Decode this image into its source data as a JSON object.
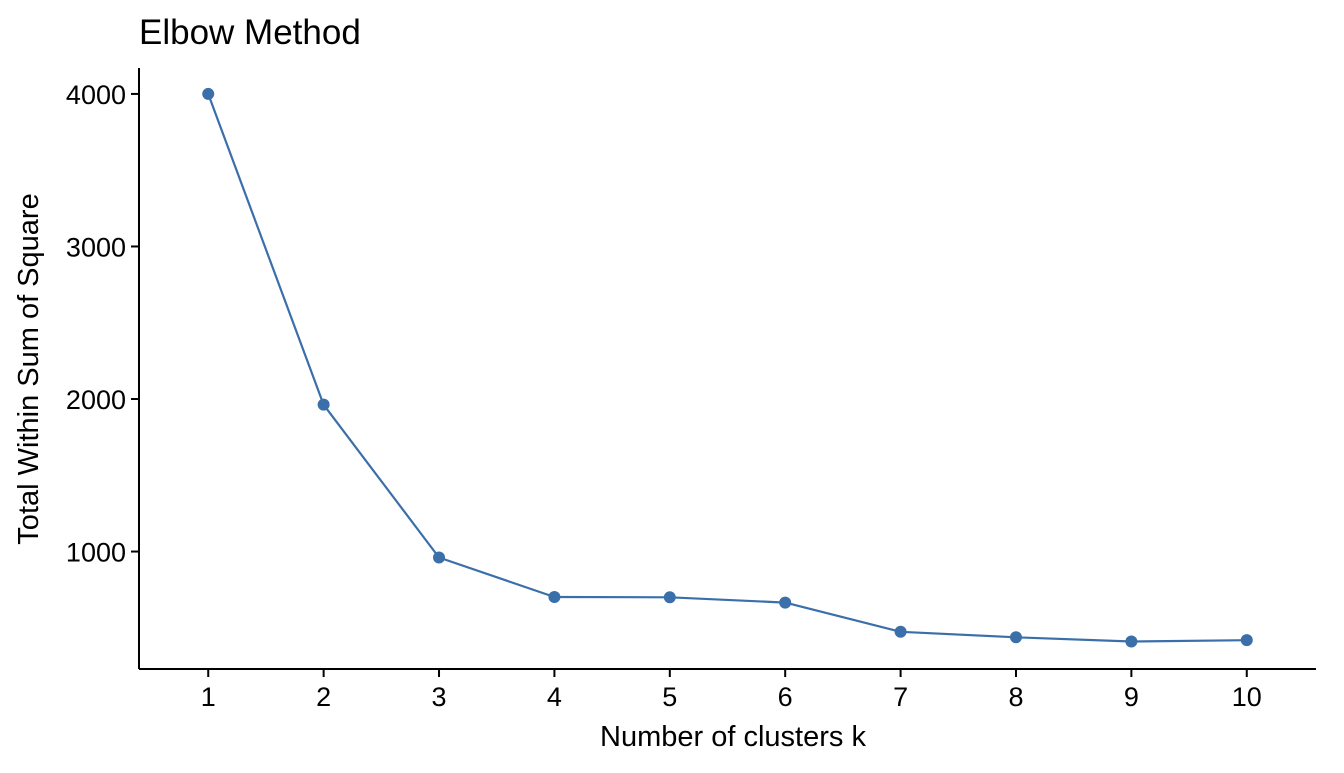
{
  "chart_data": {
    "type": "line",
    "title": "Elbow Method",
    "xlabel": "Number of clusters k",
    "ylabel": "Total Within Sum of Square",
    "x": [
      1,
      2,
      3,
      4,
      5,
      6,
      7,
      8,
      9,
      10
    ],
    "series": [
      {
        "values": [
          4000,
          1963,
          961,
          702,
          700,
          665,
          474,
          438,
          410,
          419
        ],
        "color": "#3a6faa",
        "markers": true
      }
    ],
    "x_ticks": [
      "1",
      "2",
      "3",
      "4",
      "5",
      "6",
      "7",
      "8",
      "9",
      "10"
    ],
    "y_ticks": [
      {
        "value": 1000,
        "label": "1000"
      },
      {
        "value": 2000,
        "label": "2000"
      },
      {
        "value": 3000,
        "label": "3000"
      },
      {
        "value": 4000,
        "label": "4000"
      }
    ],
    "xlim": [
      0.4,
      10.6
    ],
    "ylim": [
      230,
      4170
    ],
    "grid": false,
    "legend": "none"
  }
}
